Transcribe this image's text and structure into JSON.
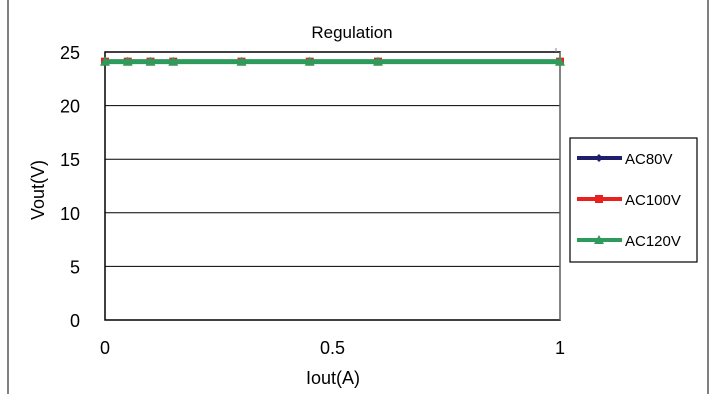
{
  "chart_data": {
    "type": "line",
    "title": "Regulation",
    "xlabel": "Iout(A)",
    "ylabel": "Vout(V)",
    "xlim": [
      0,
      1
    ],
    "ylim": [
      0,
      25
    ],
    "x_ticks": [
      "0",
      "0.5",
      "1"
    ],
    "y_ticks": [
      "0",
      "5",
      "10",
      "15",
      "20",
      "25"
    ],
    "grid": "horizontal",
    "legend_position": "right",
    "x": [
      0,
      0.05,
      0.1,
      0.15,
      0.3,
      0.45,
      0.6,
      1.0
    ],
    "series": [
      {
        "name": "AC80V",
        "color": "#1f1f6b",
        "marker": "diamond",
        "values": [
          24.1,
          24.1,
          24.1,
          24.1,
          24.1,
          24.1,
          24.1,
          24.1
        ]
      },
      {
        "name": "AC100V",
        "color": "#e8211f",
        "marker": "square",
        "values": [
          24.1,
          24.1,
          24.1,
          24.1,
          24.1,
          24.1,
          24.1,
          24.1
        ]
      },
      {
        "name": "AC120V",
        "color": "#2e9a5c",
        "marker": "triangle",
        "values": [
          24.1,
          24.1,
          24.1,
          24.1,
          24.1,
          24.1,
          24.1,
          24.1
        ]
      }
    ]
  }
}
